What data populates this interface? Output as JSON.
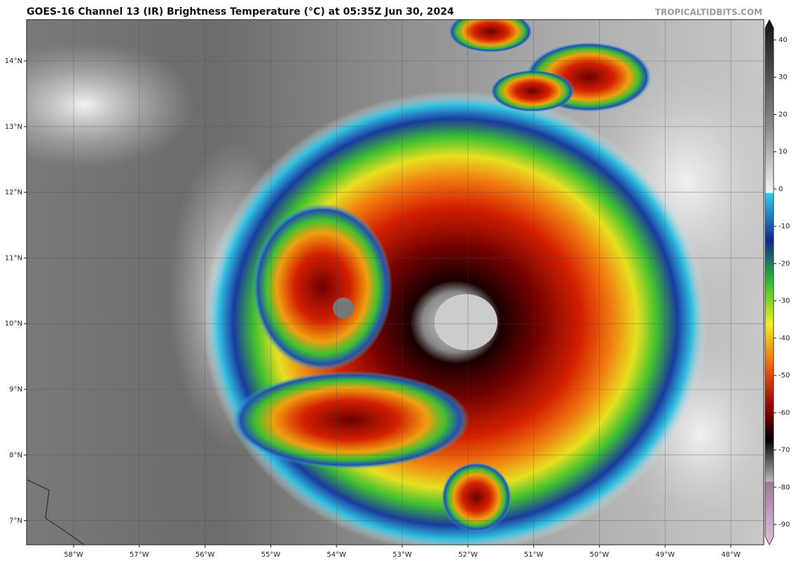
{
  "header": {
    "title": "GOES-16 Channel 13 (IR) Brightness Temperature (°C) at 05:35Z Jun 30, 2024",
    "credit": "TROPICALTIDBITS.COM"
  },
  "map": {
    "lat_labels": [
      "14°N",
      "13°N",
      "12°N",
      "11°N",
      "10°N",
      "9°N",
      "8°N",
      "7°N"
    ],
    "lon_labels": [
      "58°W",
      "57°W",
      "56°W",
      "55°W",
      "54°W",
      "53°W",
      "52°W",
      "51°W",
      "50°W",
      "49°W",
      "48°W"
    ]
  },
  "colorbar": {
    "ticks": [
      40,
      30,
      20,
      10,
      0,
      -10,
      -20,
      -30,
      -40,
      -50,
      -60,
      -70,
      -80,
      -90
    ]
  }
}
